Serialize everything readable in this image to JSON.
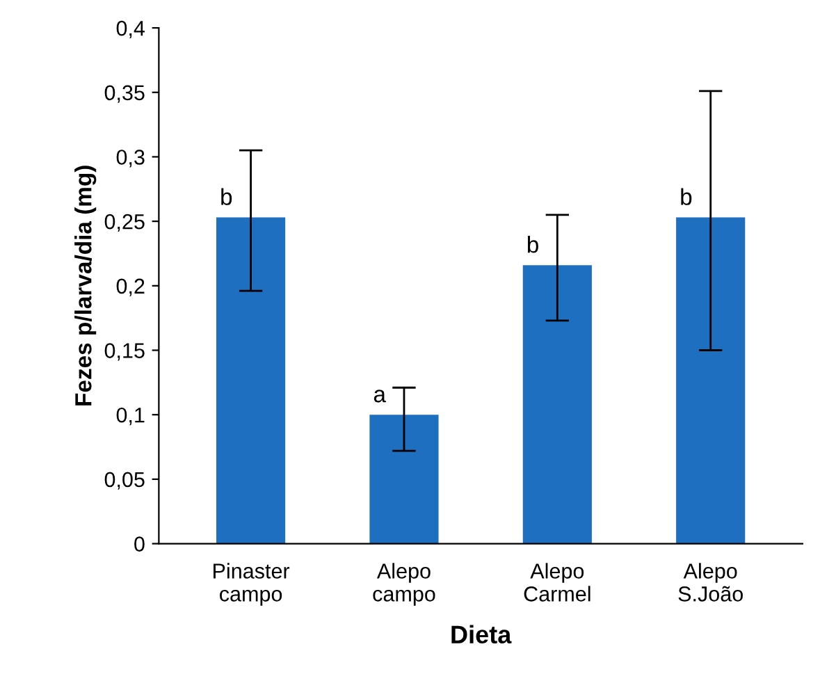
{
  "chart_data": {
    "type": "bar",
    "xlabel": "Dieta",
    "ylabel": "Fezes p/larva/dia (mg)",
    "categories": [
      "Pinaster\ncampo",
      "Alepo\ncampo",
      "Alepo\nCarmel",
      "Alepo\nS.João"
    ],
    "values": [
      0.253,
      0.1,
      0.216,
      0.253
    ],
    "errors": [
      [
        0.196,
        0.305
      ],
      [
        0.072,
        0.121
      ],
      [
        0.173,
        0.255
      ],
      [
        0.15,
        0.351
      ]
    ],
    "color": "#1f6fc0",
    "ylim": [
      0,
      0.4
    ],
    "yticks": [
      0,
      {
        "value": 0.05,
        "label": "0,05"
      },
      {
        "value": 0.1,
        "label": "0,1"
      },
      {
        "value": 0.15,
        "label": "0,15"
      },
      {
        "value": 0.2,
        "label": "0,2"
      },
      {
        "value": 0.25,
        "label": "0,25"
      },
      {
        "value": 0.3,
        "label": "0,3"
      },
      {
        "value": 0.35,
        "label": "0,35"
      },
      {
        "value": 0.4,
        "label": "0,4"
      }
    ],
    "annotations": [
      {
        "text": "b",
        "x": "Pinaster\ncampo",
        "y": 0.253
      },
      {
        "text": "a",
        "x": "Alepo\ncampo",
        "y": 0.1
      },
      {
        "text": "b",
        "x": "Alepo\nCarmel",
        "y": 0.216
      },
      {
        "text": "b",
        "x": "Alepo\nS.João",
        "y": 0.253
      }
    ],
    "grid": false,
    "legend": false
  }
}
